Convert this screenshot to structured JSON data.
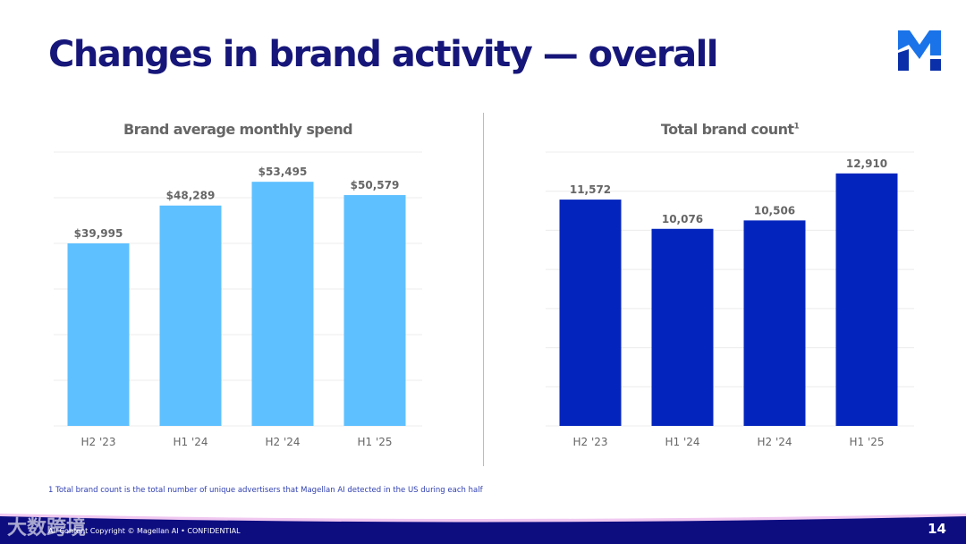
{
  "title": "Changes in brand activity — overall",
  "watermark": "大数跨境",
  "chart_data": [
    {
      "type": "bar",
      "title": "Brand average monthly spend",
      "categories": [
        "H2 '23",
        "H1 '24",
        "H2 '24",
        "H1 '25"
      ],
      "values": [
        39995,
        48289,
        53495,
        50579
      ],
      "labels": [
        "$39,995",
        "$48,289",
        "$53,495",
        "$50,579"
      ],
      "ylim": [
        0,
        60000
      ],
      "grid": true,
      "color": "#5ec0ff"
    },
    {
      "type": "bar",
      "title": "Total brand count",
      "title_sup": "1",
      "categories": [
        "H2 '23",
        "H1 '24",
        "H2 '24",
        "H1 '25"
      ],
      "values": [
        11572,
        10076,
        10506,
        12910
      ],
      "labels": [
        "11,572",
        "10,076",
        "10,506",
        "12,910"
      ],
      "ylim": [
        0,
        14000
      ],
      "grid": true,
      "color": "#0425bd"
    }
  ],
  "footnote": "1 Total brand count is the total number of unique advertisers that Magellan AI detected in the US during each half",
  "copyright": "All Content Copyright © Magellan AI • CONFIDENTIAL",
  "page_number": "14"
}
